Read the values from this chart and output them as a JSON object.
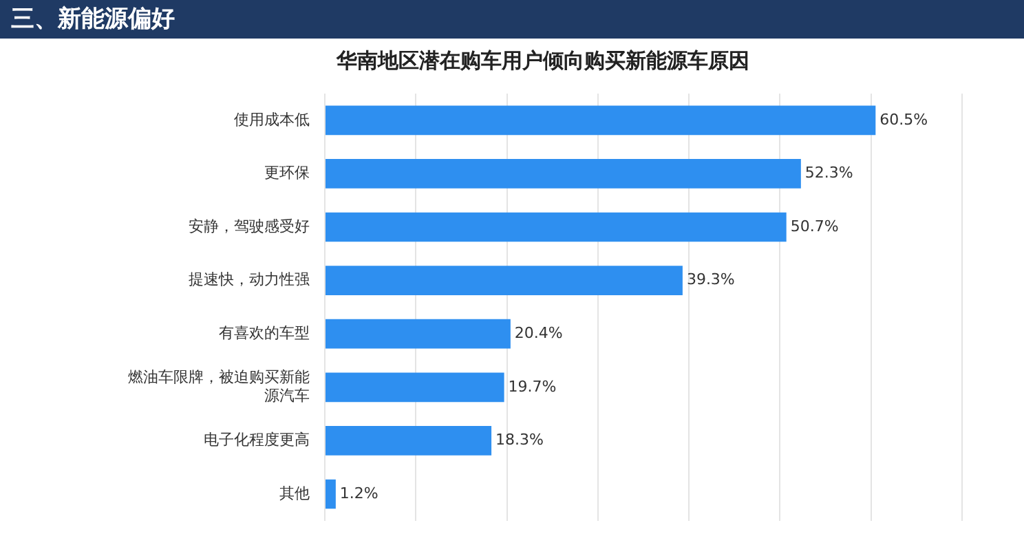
{
  "chart_data": {
    "type": "bar",
    "orientation": "horizontal",
    "title": "华南地区潜在购车用户倾向购买新能源车原因",
    "annotations": [
      "三、新能源偏好"
    ],
    "categories": [
      "使用成本低",
      "更环保",
      "安静，驾驶感受好",
      "提速快，动力性强",
      "有喜欢的车型",
      "燃油车限牌，被迫购买新能源汽车",
      "电子化程度更高",
      "其他"
    ],
    "values": [
      60.5,
      52.3,
      50.7,
      39.3,
      20.4,
      19.7,
      18.3,
      1.2
    ],
    "value_labels": [
      "60.5%",
      "52.3%",
      "50.7%",
      "39.3%",
      "20.4%",
      "19.7%",
      "18.3%",
      "1.2%"
    ],
    "color": "#2e8ff0",
    "xlim": [
      0,
      70
    ],
    "xticks": [
      {
        "value": 0,
        "label": null
      },
      {
        "value": 10,
        "label": null
      },
      {
        "value": 20,
        "label": null
      },
      {
        "value": 30,
        "label": null
      },
      {
        "value": 40,
        "label": null
      },
      {
        "value": 50,
        "label": null
      },
      {
        "value": 60,
        "label": null
      },
      {
        "value": 70,
        "label": null
      }
    ],
    "grid": "x",
    "tick_labels": "y",
    "legend": false
  }
}
